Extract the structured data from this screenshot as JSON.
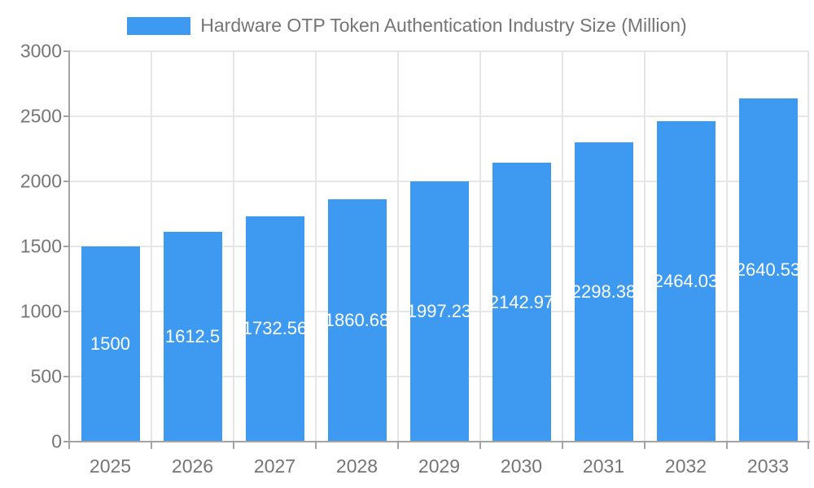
{
  "legend": {
    "label": "Hardware OTP Token Authentication Industry Size (Million)"
  },
  "chart_data": {
    "type": "bar",
    "title": "Hardware OTP Token Authentication Industry Size (Million)",
    "categories": [
      "2025",
      "2026",
      "2027",
      "2028",
      "2029",
      "2030",
      "2031",
      "2032",
      "2033"
    ],
    "values": [
      1500,
      1612.5,
      1732.56,
      1860.68,
      1997.23,
      2142.97,
      2298.38,
      2464.03,
      2640.53
    ],
    "value_labels": [
      "1500",
      "1612.5",
      "1732.56",
      "1860.68",
      "1997.23",
      "2142.97",
      "2298.38",
      "2464.03",
      "2640.53"
    ],
    "xlabel": "",
    "ylabel": "",
    "ylim": [
      0,
      3000
    ],
    "yticks": [
      0,
      500,
      1000,
      1500,
      2000,
      2500,
      3000
    ],
    "grid": "on",
    "legend_position": "top-center",
    "bar_color": "#3d9af0",
    "bar_label_color": "#ffffff",
    "grid_color": "#e6e6e6",
    "axis_color": "#a3a3a3",
    "text_color": "#757575",
    "background_color": "#ffffff"
  }
}
